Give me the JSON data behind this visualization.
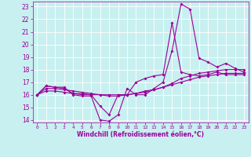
{
  "xlabel": "Windchill (Refroidissement éolien,°C)",
  "x": [
    0,
    1,
    2,
    3,
    4,
    5,
    6,
    7,
    8,
    9,
    10,
    11,
    12,
    13,
    14,
    15,
    16,
    17,
    18,
    19,
    20,
    21,
    22,
    23
  ],
  "line1": [
    16.0,
    16.7,
    16.6,
    16.6,
    16.0,
    15.9,
    15.9,
    14.0,
    13.9,
    14.4,
    16.5,
    16.0,
    16.0,
    16.5,
    17.0,
    19.5,
    23.2,
    22.8,
    18.9,
    18.6,
    18.2,
    18.5,
    18.1,
    17.8
  ],
  "line2": [
    16.0,
    16.7,
    16.6,
    16.5,
    16.1,
    16.0,
    16.0,
    15.1,
    14.4,
    16.0,
    16.0,
    17.0,
    17.3,
    17.5,
    17.6,
    21.7,
    17.8,
    17.6,
    17.5,
    17.6,
    17.8,
    17.6,
    17.6,
    17.6
  ],
  "line3": [
    16.0,
    16.5,
    16.5,
    16.4,
    16.3,
    16.2,
    16.1,
    16.0,
    15.9,
    15.9,
    16.0,
    16.1,
    16.2,
    16.4,
    16.6,
    16.9,
    17.3,
    17.5,
    17.7,
    17.8,
    17.9,
    18.0,
    18.0,
    18.0
  ],
  "line4": [
    16.0,
    16.3,
    16.3,
    16.2,
    16.1,
    16.1,
    16.0,
    16.0,
    16.0,
    16.0,
    16.0,
    16.1,
    16.3,
    16.4,
    16.6,
    16.8,
    17.0,
    17.2,
    17.4,
    17.5,
    17.6,
    17.7,
    17.7,
    17.7
  ],
  "line_color": "#990099",
  "bg_color": "#c8f0f0",
  "grid_color": "#ffffff",
  "ylim": [
    13.8,
    23.4
  ],
  "yticks": [
    14,
    15,
    16,
    17,
    18,
    19,
    20,
    21,
    22,
    23
  ],
  "xticks": [
    0,
    1,
    2,
    3,
    4,
    5,
    6,
    7,
    8,
    9,
    10,
    11,
    12,
    13,
    14,
    15,
    16,
    17,
    18,
    19,
    20,
    21,
    22,
    23
  ]
}
